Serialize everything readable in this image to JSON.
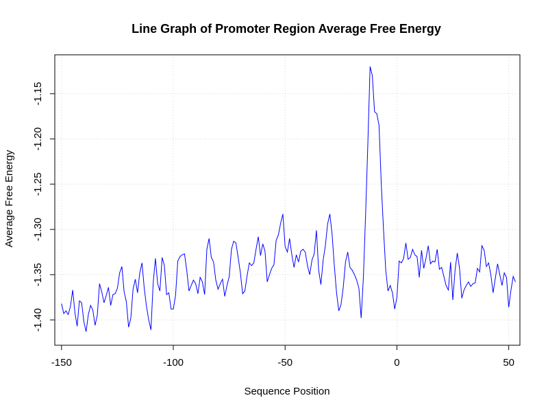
{
  "chart_data": {
    "type": "line",
    "title": "Line Graph of Promoter Region Average Free Energy",
    "xlabel": "Sequence Position",
    "ylabel": "Average Free Energy",
    "xlim": [
      -153,
      55
    ],
    "ylim": [
      -1.428,
      -1.107
    ],
    "x_ticks": [
      -150,
      -100,
      -50,
      0,
      50
    ],
    "y_ticks": [
      -1.4,
      -1.35,
      -1.3,
      -1.25,
      -1.2,
      -1.15
    ],
    "x_tick_labels": [
      "-150",
      "-100",
      "-50",
      "0",
      "50"
    ],
    "y_tick_labels": [
      "-1.40",
      "-1.35",
      "-1.30",
      "-1.25",
      "-1.20",
      "-1.15"
    ],
    "grid": true,
    "line_color": "#0000ff",
    "series": [
      {
        "x_start": -150,
        "x_step": 1,
        "values": [
          -1.382,
          -1.393,
          -1.39,
          -1.394,
          -1.385,
          -1.367,
          -1.392,
          -1.407,
          -1.379,
          -1.381,
          -1.402,
          -1.413,
          -1.394,
          -1.384,
          -1.389,
          -1.406,
          -1.395,
          -1.36,
          -1.369,
          -1.381,
          -1.373,
          -1.364,
          -1.384,
          -1.372,
          -1.371,
          -1.365,
          -1.348,
          -1.341,
          -1.369,
          -1.38,
          -1.408,
          -1.398,
          -1.366,
          -1.355,
          -1.37,
          -1.348,
          -1.337,
          -1.365,
          -1.385,
          -1.4,
          -1.411,
          -1.359,
          -1.332,
          -1.36,
          -1.368,
          -1.331,
          -1.34,
          -1.372,
          -1.37,
          -1.388,
          -1.388,
          -1.373,
          -1.335,
          -1.33,
          -1.328,
          -1.327,
          -1.345,
          -1.368,
          -1.362,
          -1.356,
          -1.36,
          -1.371,
          -1.353,
          -1.358,
          -1.372,
          -1.322,
          -1.31,
          -1.331,
          -1.336,
          -1.356,
          -1.366,
          -1.36,
          -1.355,
          -1.374,
          -1.362,
          -1.352,
          -1.322,
          -1.313,
          -1.315,
          -1.331,
          -1.348,
          -1.371,
          -1.368,
          -1.351,
          -1.337,
          -1.34,
          -1.337,
          -1.322,
          -1.308,
          -1.329,
          -1.316,
          -1.324,
          -1.358,
          -1.35,
          -1.343,
          -1.339,
          -1.312,
          -1.306,
          -1.293,
          -1.283,
          -1.319,
          -1.325,
          -1.31,
          -1.328,
          -1.342,
          -1.328,
          -1.336,
          -1.324,
          -1.322,
          -1.325,
          -1.34,
          -1.35,
          -1.334,
          -1.327,
          -1.301,
          -1.345,
          -1.361,
          -1.334,
          -1.318,
          -1.294,
          -1.283,
          -1.305,
          -1.34,
          -1.37,
          -1.39,
          -1.383,
          -1.364,
          -1.336,
          -1.325,
          -1.342,
          -1.345,
          -1.35,
          -1.356,
          -1.365,
          -1.398,
          -1.353,
          -1.283,
          -1.205,
          -1.12,
          -1.13,
          -1.17,
          -1.172,
          -1.185,
          -1.25,
          -1.3,
          -1.345,
          -1.368,
          -1.362,
          -1.37,
          -1.388,
          -1.375,
          -1.335,
          -1.337,
          -1.332,
          -1.315,
          -1.333,
          -1.331,
          -1.322,
          -1.328,
          -1.33,
          -1.353,
          -1.323,
          -1.343,
          -1.332,
          -1.318,
          -1.338,
          -1.335,
          -1.336,
          -1.322,
          -1.344,
          -1.342,
          -1.352,
          -1.362,
          -1.367,
          -1.336,
          -1.378,
          -1.345,
          -1.326,
          -1.343,
          -1.376,
          -1.367,
          -1.362,
          -1.358,
          -1.363,
          -1.36,
          -1.359,
          -1.343,
          -1.347,
          -1.318,
          -1.323,
          -1.341,
          -1.337,
          -1.35,
          -1.37,
          -1.354,
          -1.338,
          -1.35,
          -1.362,
          -1.348,
          -1.353,
          -1.386,
          -1.367,
          -1.352,
          -1.358
        ]
      }
    ]
  }
}
